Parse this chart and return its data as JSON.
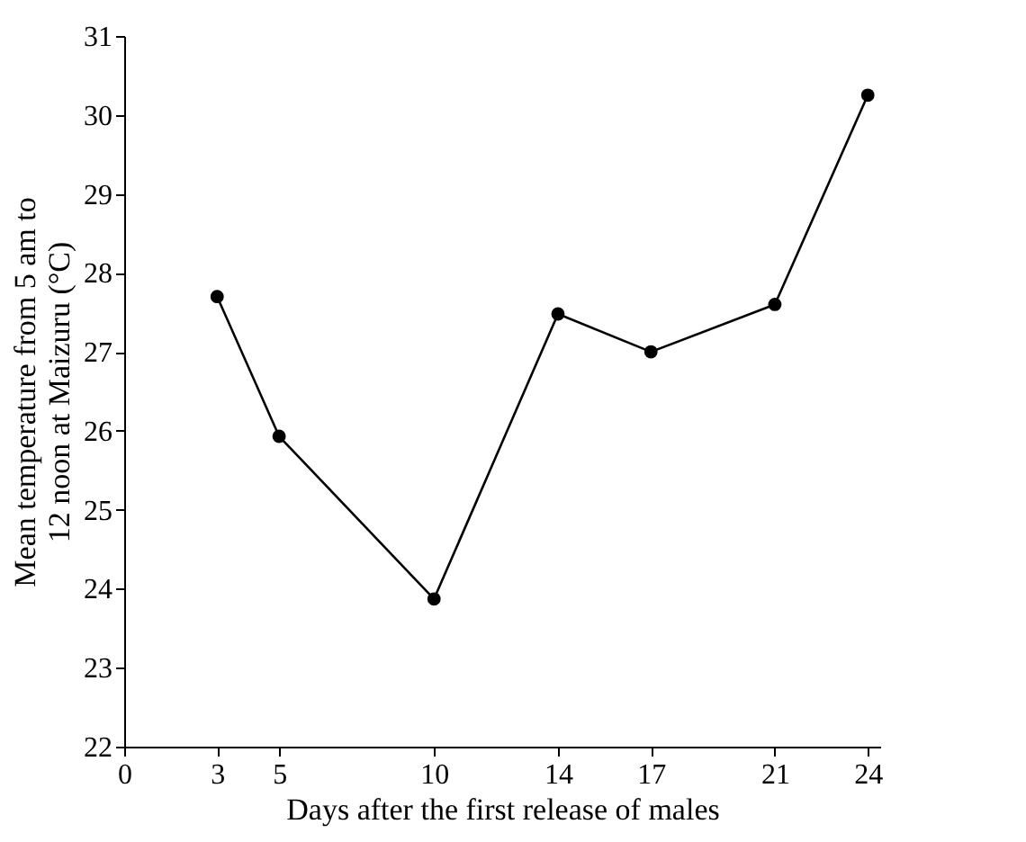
{
  "chart_data": {
    "type": "line",
    "xlabel": "Days after the first release of males",
    "ylabel": "Mean temperature from 5 am to 12 noon at Maizuru (°C)",
    "x": [
      3,
      5,
      10,
      14,
      17,
      21,
      24
    ],
    "series": [
      {
        "color": "#000000",
        "values": [
          27.7,
          25.93,
          23.87,
          27.48,
          27.0,
          27.6,
          30.25
        ]
      }
    ],
    "xlim": [
      0,
      24.4
    ],
    "xticks": [
      0,
      3,
      5,
      10,
      14,
      17,
      21,
      24
    ],
    "ylim": [
      22,
      31
    ],
    "yticks": [
      22,
      23,
      24,
      25,
      26,
      27,
      28,
      29,
      30,
      31
    ],
    "marker": "circle",
    "line_style": "solid",
    "grid": false
  }
}
